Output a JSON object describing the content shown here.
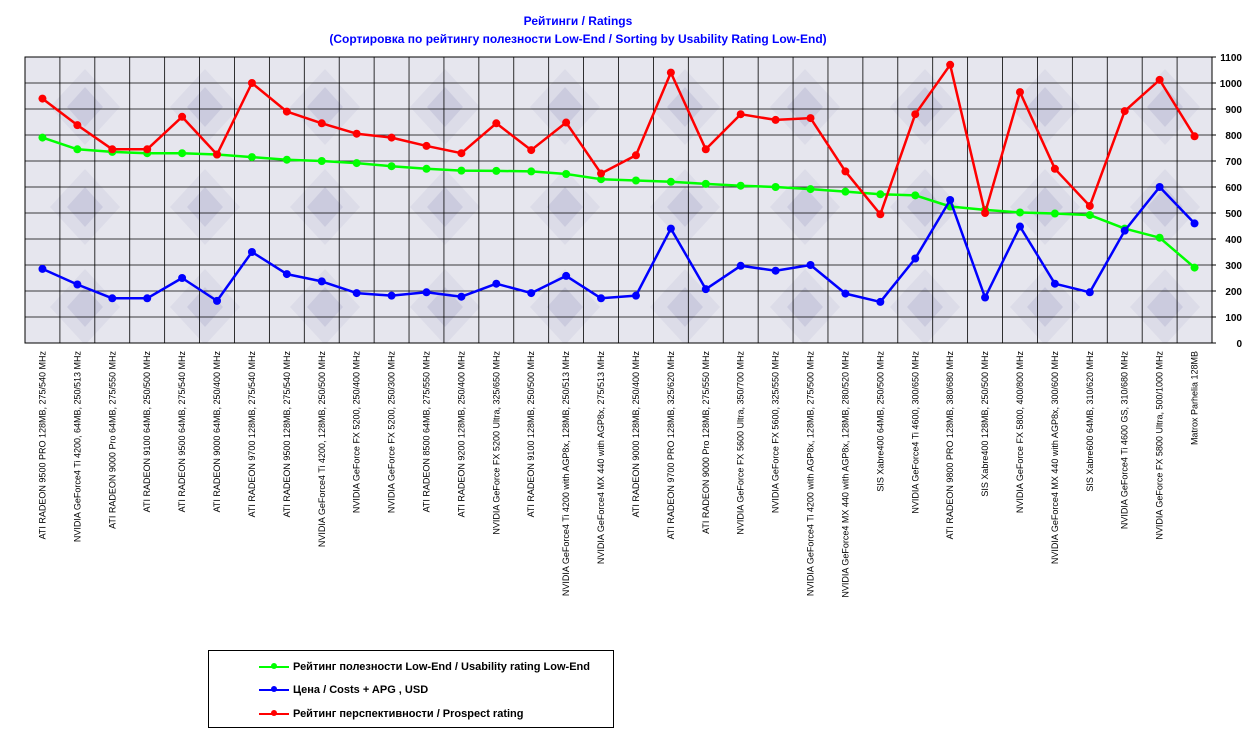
{
  "chart_data": {
    "type": "line",
    "title": "Рейтинги / Ratings",
    "subtitle": "(Сортировка по рейтингу полезности Low-End / Sorting by Usability Rating Low-End)",
    "ylim": [
      0,
      1100
    ],
    "yticks": [
      "0",
      "100",
      "200",
      "300",
      "400",
      "500",
      "600",
      "700",
      "800",
      "900",
      "1000",
      "1100"
    ],
    "grid": true,
    "legend_position": "bottom-left",
    "categories": [
      "ATI RADEON 9500 PRO 128MB, 275/540 MHz",
      "NVIDIA GeForce4 Ti 4200, 64MB, 250/513 MHz",
      "ATI RADEON 9000 Pro 64MB, 275/550 MHz",
      "ATI RADEON 9100 64MB, 250/500 MHz",
      "ATI RADEON 9500 64MB, 275/540 MHz",
      "ATI RADEON 9000 64MB, 250/400 MHz",
      "ATI RADEON 9700 128MB, 275/540 MHz",
      "ATI RADEON 9500 128MB, 275/540 MHz",
      "NVIDIA GeForce4 Ti 4200, 128MB, 250/500 MHz",
      "NVIDIA GeForce FX 5200, 250/400 MHz",
      "NVIDIA GeForce FX 5200, 250/300 MHz",
      "ATI RADEON 8500 64MB, 275/550 MHz",
      "ATI RADEON 9200 128MB, 250/400 MHz",
      "NVIDIA GeForce FX 5200 Ultra, 325/650 MHz",
      "ATI RADEON 9100 128MB, 250/500 MHz",
      "NVIDIA GeForce4 Ti 4200 with AGP8x, 128MB, 250/513 MHz",
      "NVIDIA GeForce4 MX 440 with AGP8x, 275/513 MHz",
      "ATI RADEON 9000 128MB, 250/400 MHz",
      "ATI RADEON 9700 PRO 128MB, 325/620 MHz",
      "ATI RADEON 9000 Pro 128MB, 275/550 MHz",
      "NVIDIA GeForce FX 5600 Ultra, 350/700 MHz",
      "NVIDIA GeForce FX 5600, 325/550 MHz",
      "NVIDIA GeForce4 Ti 4200 with AGP8x, 128MB, 275/500 MHz",
      "NVIDIA GeForce4 MX 440 with AGP8x, 128MB, 280/520 MHz",
      "SIS Xabre400 64MB, 250/500 MHz",
      "NVIDIA GeForce4 Ti 4600, 300/650 MHz",
      "ATI RADEON 9800 PRO 128MB, 380/680 MHz",
      "SIS Xabre400 128MB, 250/500 MHz",
      "NVIDIA GeForce FX 5800, 400/800 MHz",
      "NVIDIA GeForce4 MX 440 with AGP8x, 300/600 MHz",
      "SIS Xabre600 64MB, 310/620 MHz",
      "NVIDIA GeForce4 Ti 4600 GS, 310/680 MHz",
      "NVIDIA GeForce FX 5800 Ultra, 500/1000 MHz",
      "Matrox Parhelia 128MB"
    ],
    "series": [
      {
        "name": "Рейтинг полезности Low-End / Usability rating Low-End",
        "color": "#00ff00",
        "values": [
          790,
          745,
          735,
          730,
          730,
          725,
          715,
          705,
          700,
          692,
          680,
          670,
          663,
          662,
          660,
          650,
          630,
          625,
          620,
          612,
          605,
          600,
          592,
          582,
          572,
          568,
          525,
          512,
          502,
          498,
          492,
          440,
          405,
          290
        ]
      },
      {
        "name": "Цена / Costs + APG , USD",
        "color": "#0000ff",
        "values": [
          285,
          225,
          172,
          172,
          250,
          162,
          350,
          265,
          237,
          192,
          182,
          195,
          178,
          228,
          192,
          258,
          172,
          182,
          440,
          207,
          297,
          278,
          300,
          190,
          158,
          325,
          550,
          175,
          448,
          228,
          195,
          432,
          600,
          460
        ]
      },
      {
        "name": "Рейтинг перспективности / Prospect rating",
        "color": "#ff0000",
        "values": [
          940,
          838,
          745,
          745,
          870,
          725,
          1000,
          890,
          845,
          805,
          790,
          758,
          730,
          845,
          742,
          848,
          652,
          722,
          1040,
          745,
          880,
          858,
          865,
          660,
          495,
          880,
          1070,
          500,
          965,
          670,
          527,
          892,
          1012,
          795
        ]
      }
    ]
  }
}
